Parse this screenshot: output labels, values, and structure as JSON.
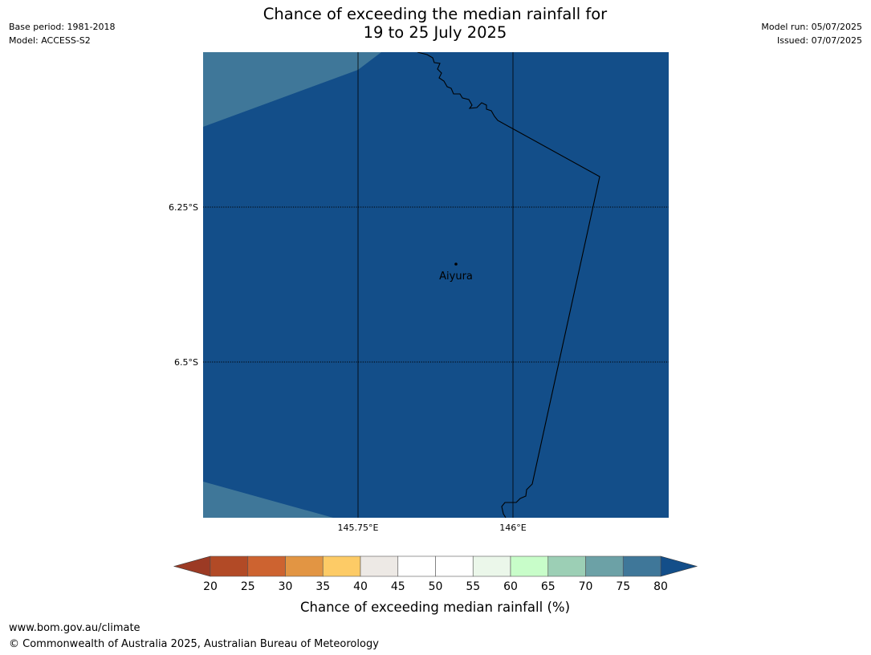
{
  "header": {
    "base_period": "Base period: 1981-2018",
    "model": "Model: ACCESS-S2",
    "model_run": "Model run: 05/07/2025",
    "issued": "Issued: 07/07/2025",
    "title_line1": "Chance of exceeding the median rainfall for",
    "title_line2": "19 to 25 July 2025"
  },
  "map": {
    "lat_labels": [
      "6.25°S",
      "6.5°S"
    ],
    "lon_labels": [
      "145.75°E",
      "146°E"
    ],
    "place": "Aiyura",
    "colors": {
      "base_fill": "#134e89",
      "band_75_80": "#3f7799",
      "border": "#000000"
    }
  },
  "colorbar": {
    "ticks": [
      "20",
      "25",
      "30",
      "35",
      "40",
      "45",
      "50",
      "55",
      "60",
      "65",
      "70",
      "75",
      "80"
    ],
    "colors": [
      "#b24a26",
      "#cd6330",
      "#e29543",
      "#fdcb66",
      "#ede9e5",
      "#ffffff",
      "#ffffff",
      "#ebf7ea",
      "#c8fdc9",
      "#9ccfb5",
      "#6ca1a6",
      "#3f7799"
    ],
    "low_extend_color": "#9c3a24",
    "high_extend_color": "#134e89",
    "label": "Chance of exceeding median rainfall (%)"
  },
  "footer": {
    "url": "www.bom.gov.au/climate",
    "copyright": "© Commonwealth of Australia 2025, Australian Bureau of Meteorology"
  }
}
